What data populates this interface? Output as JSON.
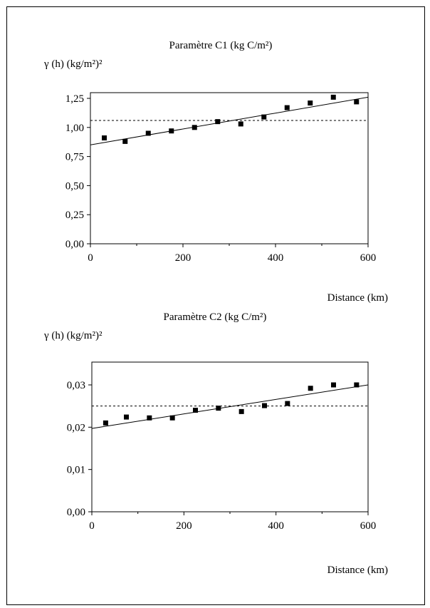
{
  "chart_data": [
    {
      "type": "scatter",
      "title": "Paramètre C1  (kg C/m²)",
      "ylabel": "γ (h) (kg/m²)²",
      "xlabel": "Distance (km)",
      "xlim": [
        0,
        600
      ],
      "ylim": [
        0,
        1.25
      ],
      "xticks": [
        "0",
        "200",
        "400",
        "600"
      ],
      "yticks": [
        "0,00",
        "0,25",
        "0,50",
        "0,75",
        "1,00",
        "1,25"
      ],
      "x": [
        30,
        75,
        125,
        175,
        225,
        275,
        325,
        375,
        425,
        475,
        525,
        575
      ],
      "y": [
        0.91,
        0.88,
        0.95,
        0.97,
        1.0,
        1.05,
        1.03,
        1.09,
        1.17,
        1.21,
        1.26,
        1.22
      ],
      "trend_line": {
        "x": [
          0,
          600
        ],
        "y": [
          0.85,
          1.26
        ]
      },
      "reference_line": {
        "y": 1.06,
        "style": "dashed"
      },
      "grid": false
    },
    {
      "type": "scatter",
      "title": "Paramètre C2  (kg C/m²)",
      "ylabel": "γ (h) (kg/m²)²",
      "xlabel": "Distance (km)",
      "xlim": [
        0,
        600
      ],
      "ylim": [
        0,
        0.035
      ],
      "xticks": [
        "0",
        "200",
        "400",
        "600"
      ],
      "yticks": [
        "0,00",
        "0,01",
        "0,02",
        "0,03"
      ],
      "x": [
        30,
        75,
        125,
        175,
        225,
        275,
        325,
        375,
        425,
        475,
        525,
        575
      ],
      "y": [
        0.021,
        0.0224,
        0.0222,
        0.0222,
        0.024,
        0.0245,
        0.0237,
        0.0251,
        0.0256,
        0.0292,
        0.03,
        0.03
      ],
      "trend_line": {
        "x": [
          0,
          600
        ],
        "y": [
          0.0197,
          0.03
        ]
      },
      "reference_line": {
        "y": 0.025,
        "style": "dashed"
      },
      "grid": false
    }
  ]
}
